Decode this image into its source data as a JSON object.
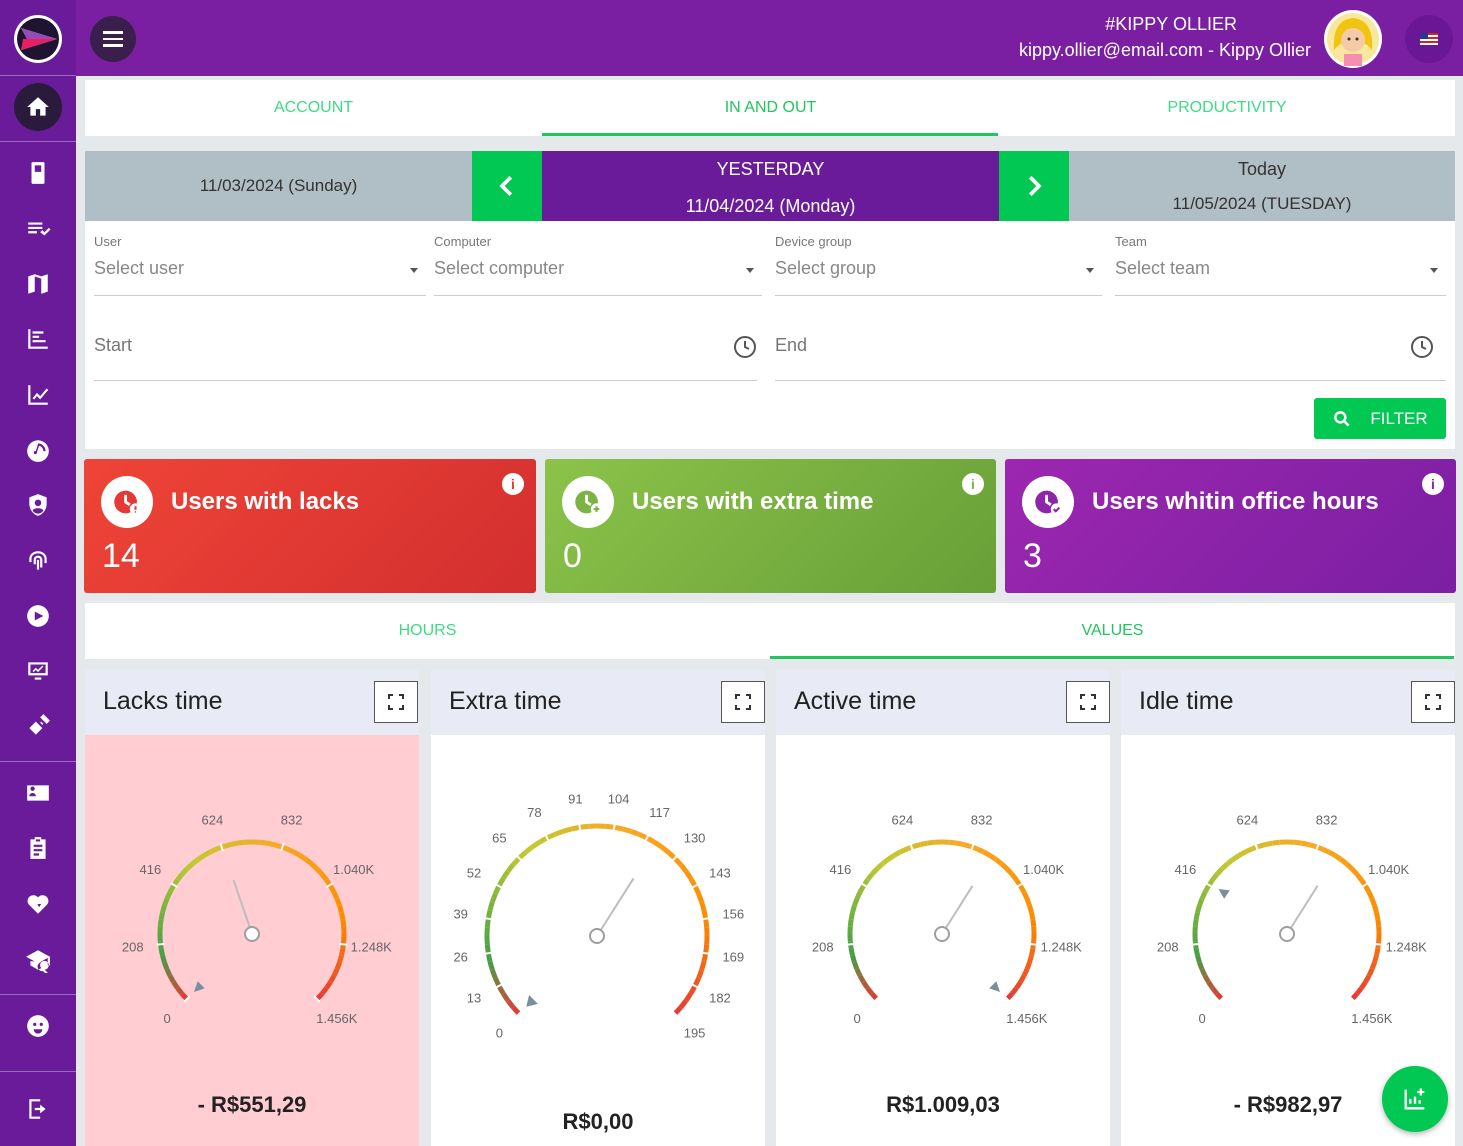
{
  "header": {
    "user_code": "#KIPPY OLLIER",
    "user_email": "kippy.ollier@email.com - Kippy Ollier"
  },
  "main_tabs": [
    "ACCOUNT",
    "IN AND OUT",
    "PRODUCTIVITY"
  ],
  "date_nav": {
    "prev_date": "11/03/2024 (Sunday)",
    "current_label": "YESTERDAY",
    "current_date": "11/04/2024 (Monday)",
    "next_label": "Today",
    "next_date": "11/05/2024 (TUESDAY)"
  },
  "filters": {
    "user": {
      "label": "User",
      "placeholder": "Select user"
    },
    "computer": {
      "label": "Computer",
      "placeholder": "Select computer"
    },
    "device_group": {
      "label": "Device group",
      "placeholder": "Select group"
    },
    "team": {
      "label": "Team",
      "placeholder": "Select team"
    },
    "start": "Start",
    "end": "End",
    "filter_button": "FILTER"
  },
  "cards": [
    {
      "title": "Users with lacks",
      "value": "14",
      "color": "#e53935"
    },
    {
      "title": "Users with extra time",
      "value": "0",
      "color": "#7cb342"
    },
    {
      "title": "Users whitin office hours",
      "value": "3",
      "color": "#8e24aa"
    }
  ],
  "sub_tabs": [
    "HOURS",
    "VALUES"
  ],
  "chart_data": [
    {
      "type": "gauge",
      "title": "Lacks time",
      "ticks": [
        "0",
        "208",
        "416",
        "624",
        "832",
        "1.040K",
        "1.248K",
        "1.456K"
      ],
      "min": 0,
      "max": 1456,
      "value_label": "- R$551,29"
    },
    {
      "type": "gauge",
      "title": "Extra time",
      "ticks": [
        "0",
        "13",
        "26",
        "39",
        "52",
        "65",
        "78",
        "91",
        "104",
        "117",
        "130",
        "143",
        "156",
        "169",
        "182",
        "195"
      ],
      "min": 0,
      "max": 195,
      "value_label": "R$0,00"
    },
    {
      "type": "gauge",
      "title": "Active time",
      "ticks": [
        "0",
        "208",
        "416",
        "624",
        "832",
        "1.040K",
        "1.248K",
        "1.456K"
      ],
      "min": 0,
      "max": 1456,
      "value_label": "R$1.009,03"
    },
    {
      "type": "gauge",
      "title": "Idle time",
      "ticks": [
        "0",
        "208",
        "416",
        "624",
        "832",
        "1.040K",
        "1.248K",
        "1.456K"
      ],
      "min": 0,
      "max": 1456,
      "value_label": "- R$982,97"
    }
  ]
}
